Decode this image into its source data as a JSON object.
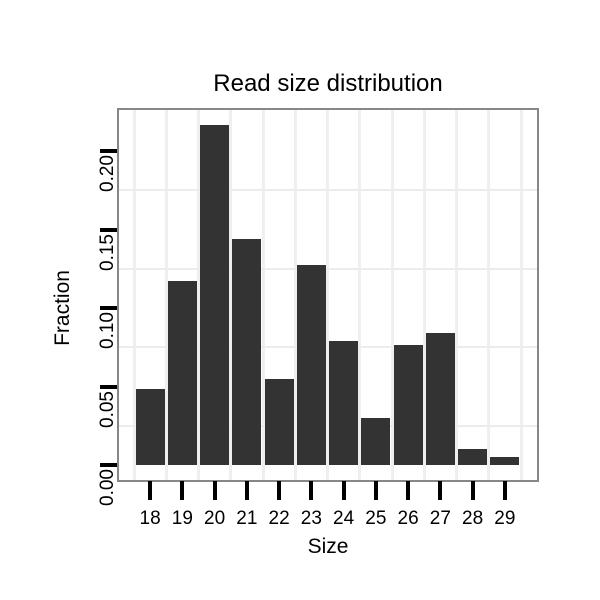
{
  "chart_data": {
    "type": "bar",
    "title": "Read size distribution",
    "xlabel": "Size",
    "ylabel": "Fraction",
    "categories": [
      "18",
      "19",
      "20",
      "21",
      "22",
      "23",
      "24",
      "25",
      "26",
      "27",
      "28",
      "29"
    ],
    "values": [
      0.0484,
      0.1172,
      0.2166,
      0.1439,
      0.0548,
      0.1274,
      0.079,
      0.0299,
      0.0764,
      0.0841,
      0.0102,
      0.0051
    ],
    "ylim": [
      0,
      0.2275
    ],
    "yticks": [
      0,
      0.05,
      0.1,
      0.15,
      0.2
    ],
    "ytick_labels": [
      "0.00",
      "0.05",
      "0.10",
      "0.15",
      "0.20"
    ],
    "minor_gridlines_y": [
      0.025,
      0.075,
      0.125,
      0.175
    ],
    "grid": "minor gridlines only, light gray on white panel; vertical minor gridlines between bars",
    "legend": "none",
    "colors": {
      "bar_fill": "#333333",
      "panel_border": "#878787",
      "gridline": "#ececec",
      "tick": "#000000",
      "text": "#000000",
      "background": "#ffffff"
    }
  }
}
